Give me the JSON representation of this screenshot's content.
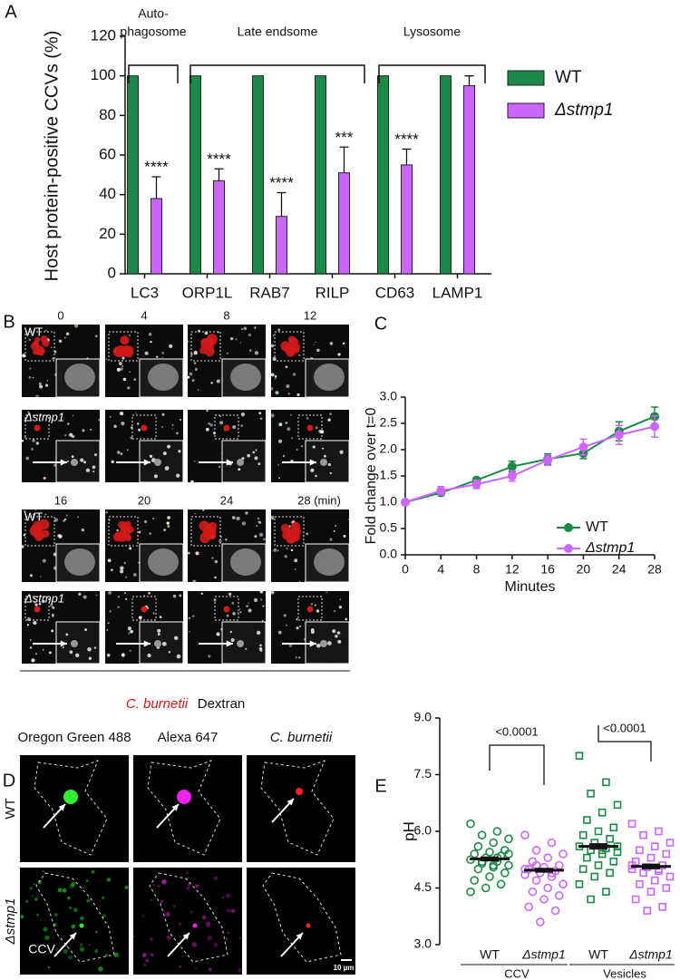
{
  "panel_labels": [
    "A",
    "B",
    "C",
    "D",
    "E"
  ],
  "chart_data": [
    {
      "type": "bar",
      "y_label": "Host protein-positive CCVs (%)",
      "categories": [
        "LC3",
        "ORP1L",
        "RAB7",
        "RILP",
        "CD63",
        "LAMP1"
      ],
      "series": [
        {
          "name": "WT",
          "color": "#1b8a48",
          "values": [
            100,
            100,
            100,
            100,
            100,
            100
          ]
        },
        {
          "name": "Δstmp1",
          "color": "#cc66ff",
          "values": [
            38,
            47,
            29,
            51,
            55,
            95
          ],
          "errors": [
            11,
            6,
            12,
            13,
            8,
            5
          ]
        }
      ],
      "significance": [
        "****",
        "****",
        "****",
        "***",
        "****",
        null
      ],
      "brackets": [
        {
          "label": [
            "Auto-",
            "phagosome"
          ]
        },
        {
          "label": [
            "Late endsome"
          ]
        },
        {
          "label": [
            "Lysosome"
          ]
        }
      ],
      "ylim": [
        0,
        120
      ],
      "yticks": [
        0,
        20,
        40,
        60,
        80,
        100,
        120
      ]
    },
    {
      "type": "line",
      "x_label": "Minutes",
      "y_label": "Fold change over t=0",
      "x": [
        0,
        4,
        8,
        12,
        16,
        20,
        24,
        28
      ],
      "series": [
        {
          "name": "WT",
          "color": "#1b8a48",
          "values": [
            1.0,
            1.18,
            1.42,
            1.68,
            1.82,
            1.93,
            2.35,
            2.63
          ],
          "errors": [
            0.03,
            0.05,
            0.05,
            0.1,
            0.1,
            0.1,
            0.18,
            0.18
          ]
        },
        {
          "name": "Δstmp1",
          "color": "#cc66ff",
          "values": [
            1.0,
            1.22,
            1.34,
            1.5,
            1.8,
            2.05,
            2.28,
            2.44
          ],
          "errors": [
            0.03,
            0.08,
            0.08,
            0.1,
            0.1,
            0.15,
            0.18,
            0.2
          ]
        }
      ],
      "xlim": [
        0,
        28
      ],
      "xticks": [
        0,
        4,
        8,
        12,
        16,
        20,
        24,
        28
      ],
      "ylim": [
        0,
        3
      ],
      "yticks": [
        {
          "value": 0,
          "label": "0.0"
        },
        0.5,
        {
          "value": 1,
          "label": "1.0"
        },
        1.5,
        {
          "value": 2,
          "label": "2.0"
        },
        2.5,
        {
          "value": 3,
          "label": "3.0"
        }
      ]
    },
    {
      "type": "strip",
      "y_label": "pH",
      "groups": [
        {
          "label": "CCV",
          "p_label": "<0.0001",
          "series": [
            {
              "name": "WT",
              "color": "#1b8a48",
              "marker": "circle",
              "mean": 5.27,
              "sem": 0.04,
              "values": [
                6.2,
                6.0,
                5.9,
                5.8,
                5.7,
                5.6,
                5.5,
                5.45,
                5.4,
                5.35,
                5.3,
                5.25,
                5.2,
                5.15,
                5.1,
                5.05,
                5.0,
                4.9,
                4.8,
                4.7,
                4.6,
                4.5,
                4.4,
                5.3,
                5.2,
                5.4,
                5.1
              ]
            },
            {
              "name": "Δstmp1",
              "color": "#cc66ff",
              "marker": "circle",
              "mean": 4.97,
              "sem": 0.04,
              "values": [
                5.9,
                5.7,
                5.5,
                5.4,
                5.3,
                5.2,
                5.1,
                5.05,
                5.0,
                4.95,
                4.9,
                4.85,
                4.8,
                4.7,
                4.6,
                4.5,
                4.4,
                4.3,
                4.2,
                4.0,
                3.9,
                3.6,
                5.0,
                4.9,
                5.1
              ]
            }
          ]
        },
        {
          "label": "Vesicles",
          "p_label": "<0.0001",
          "series": [
            {
              "name": "WT",
              "color": "#1b8a48",
              "marker": "square",
              "mean": 5.6,
              "sem": 0.06,
              "values": [
                8.0,
                7.3,
                7.0,
                6.7,
                6.5,
                6.3,
                6.1,
                6.0,
                5.9,
                5.8,
                5.7,
                5.6,
                5.55,
                5.5,
                5.45,
                5.4,
                5.3,
                5.2,
                5.1,
                5.0,
                4.9,
                4.8,
                4.6,
                4.4,
                4.2,
                5.6,
                5.5
              ]
            },
            {
              "name": "Δstmp1",
              "color": "#cc66ff",
              "marker": "square",
              "mean": 5.07,
              "sem": 0.05,
              "values": [
                6.2,
                6.0,
                5.9,
                5.7,
                5.6,
                5.5,
                5.4,
                5.3,
                5.2,
                5.1,
                5.05,
                5.0,
                4.95,
                4.9,
                4.8,
                4.7,
                4.6,
                4.5,
                4.4,
                4.2,
                4.0,
                3.9,
                5.1,
                5.0
              ]
            }
          ]
        }
      ],
      "ylim": [
        3,
        9
      ],
      "yticks": [
        {
          "value": 3,
          "label": "3.0"
        },
        4.5,
        {
          "value": 6,
          "label": "6.0"
        },
        7.5,
        {
          "value": 9,
          "label": "9.0"
        }
      ]
    }
  ],
  "panel_b": {
    "rows": [
      "WT",
      "Δstmp1",
      "WT",
      "Δstmp1"
    ],
    "times": [
      "0",
      "4",
      "8",
      "12",
      "16",
      "20",
      "24",
      "28 (min)"
    ],
    "legend": [
      "C. burnetii",
      "Dextran"
    ]
  },
  "panel_d": {
    "columns": [
      "Oregon Green 488",
      "Alexa 647",
      "C. burnetii"
    ],
    "rows": [
      "WT",
      "Δstmp1"
    ],
    "annotations": [
      "CCV",
      "10 µm"
    ]
  }
}
